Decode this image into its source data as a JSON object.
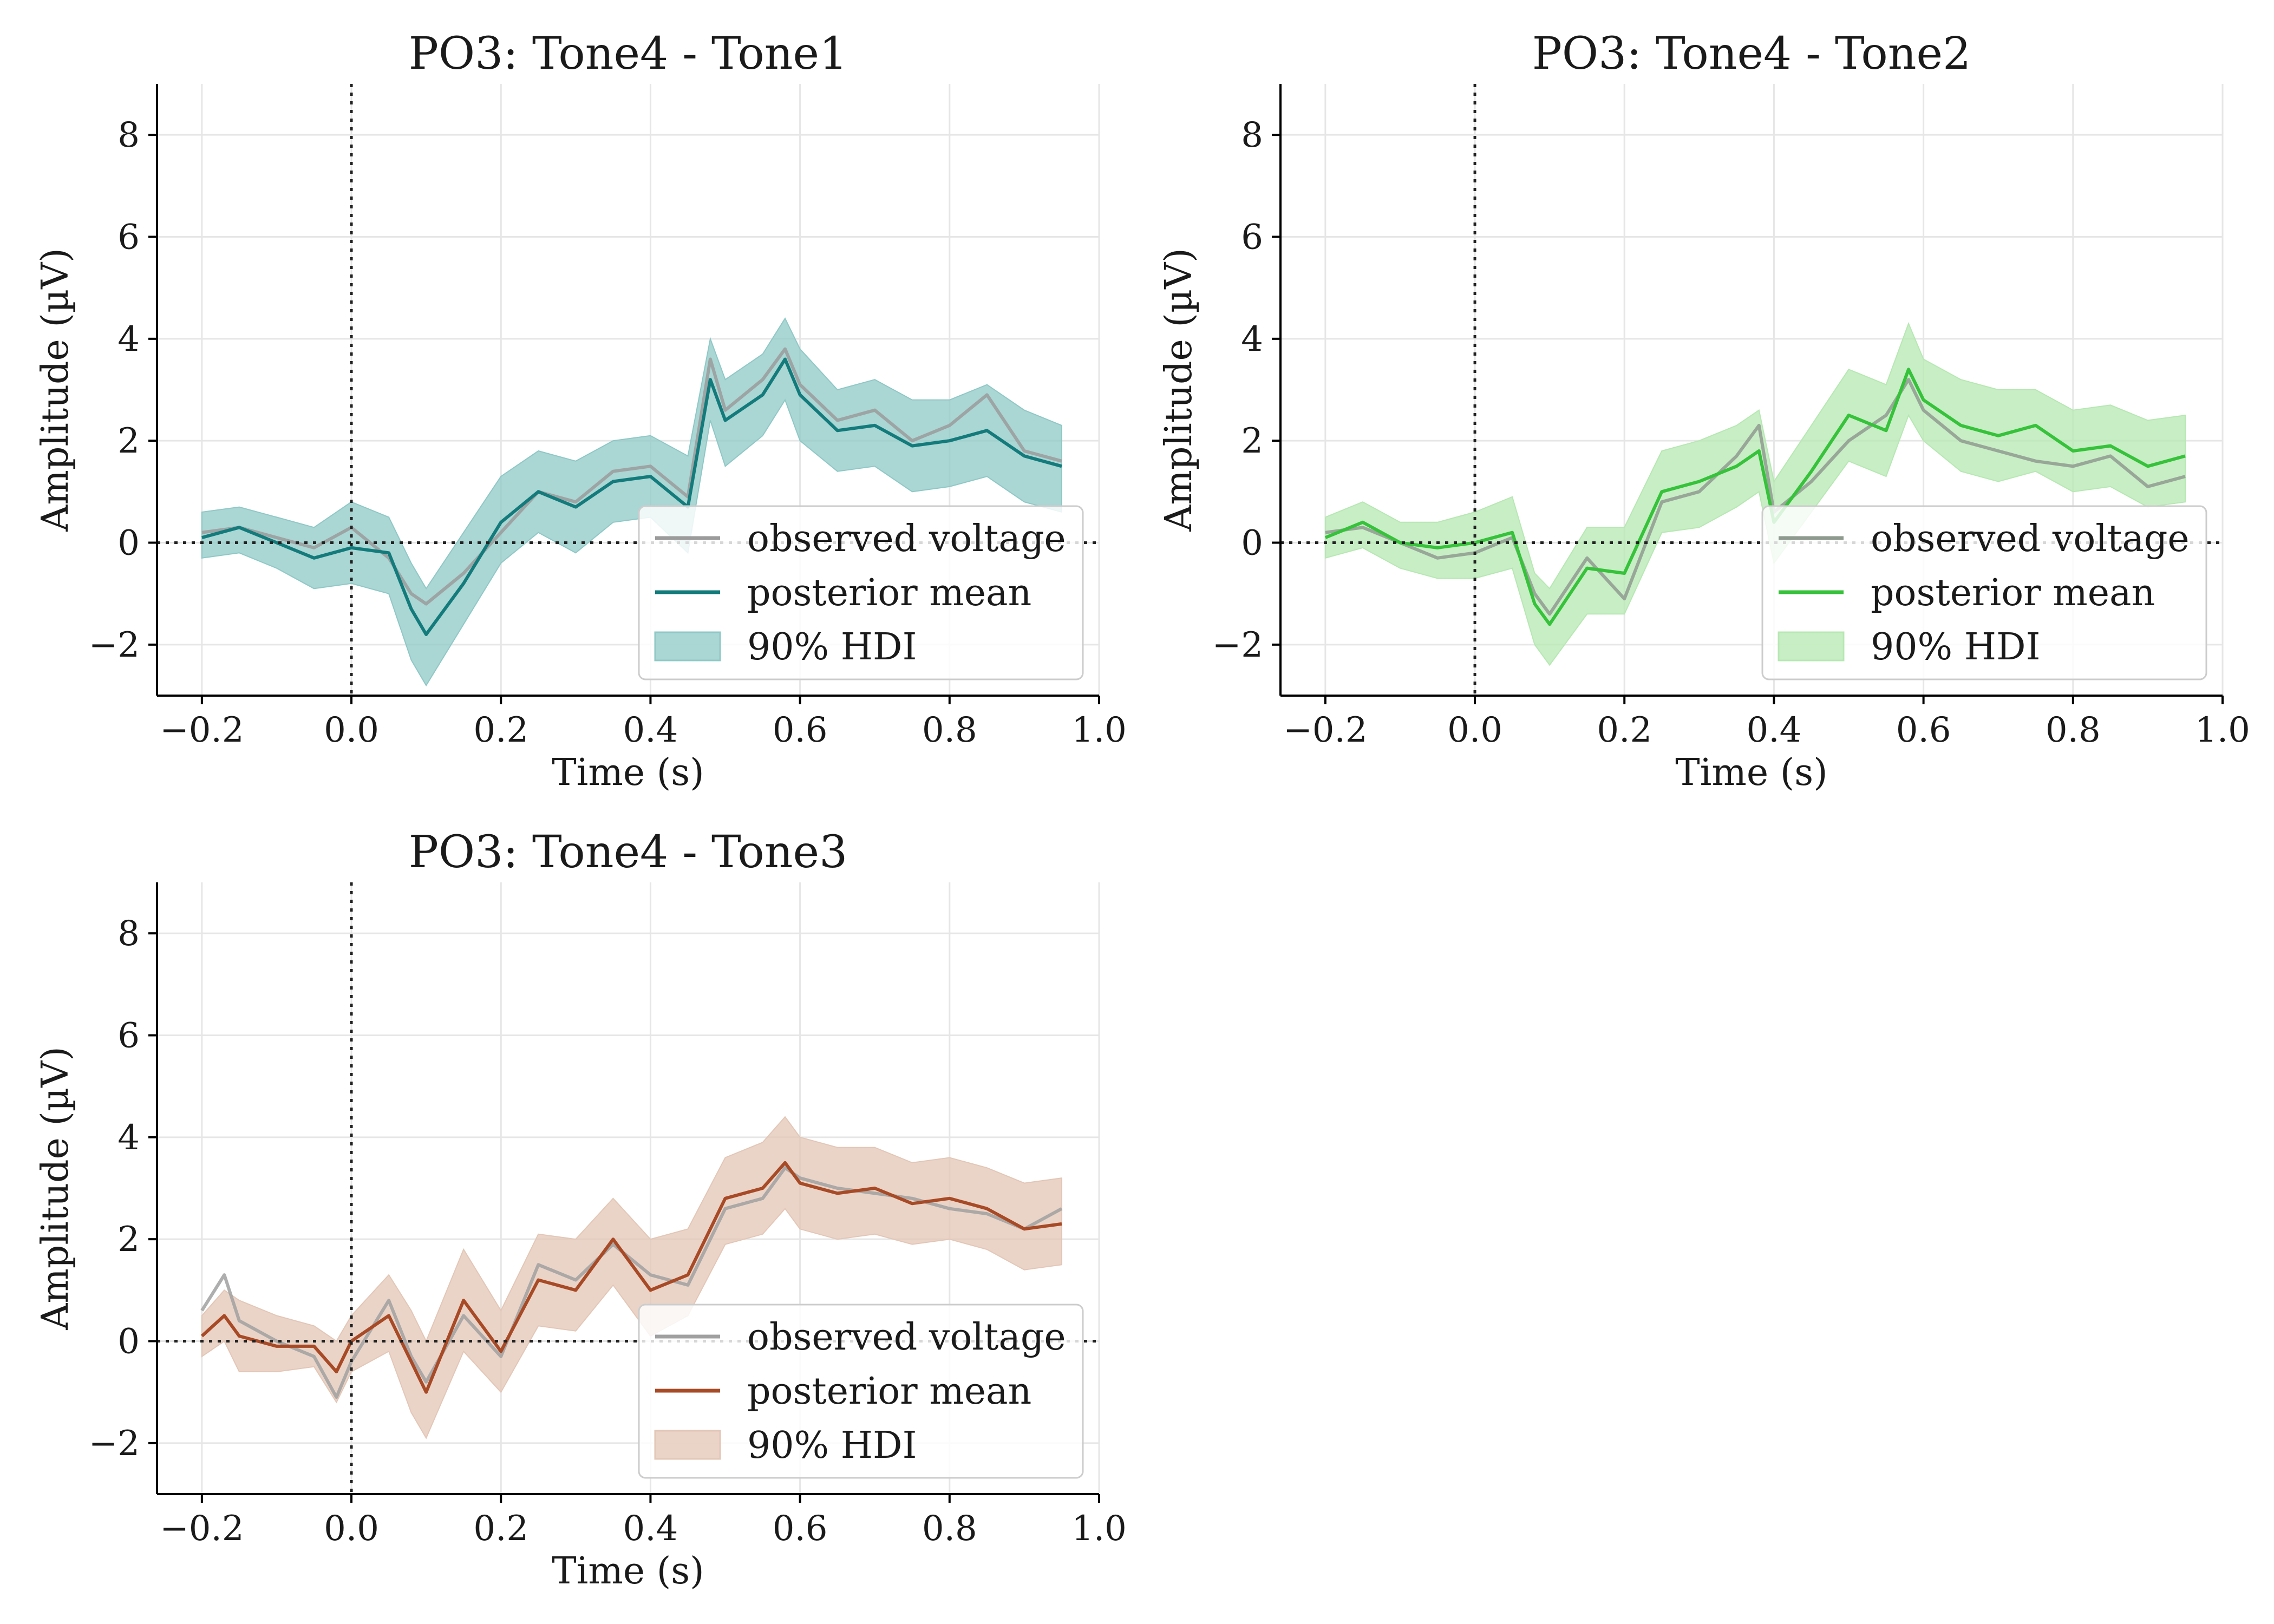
{
  "figure": {
    "x_tick_labels": [
      "−0.2",
      "0.0",
      "0.2",
      "0.4",
      "0.6",
      "0.8",
      "1.0"
    ],
    "y_tick_labels": [
      "−2",
      "0",
      "2",
      "4",
      "6",
      "8"
    ]
  },
  "chart_data": [
    {
      "type": "line",
      "title": "PO3: Tone4 - Tone1",
      "xlabel": "Time (s)",
      "ylabel": "Amplitude (µV)",
      "xlim": [
        -0.26,
        1.0
      ],
      "ylim": [
        -3.0,
        9.0
      ],
      "xticks": [
        -0.2,
        0.0,
        0.2,
        0.4,
        0.6,
        0.8,
        1.0
      ],
      "yticks": [
        -2,
        0,
        2,
        4,
        6,
        8
      ],
      "grid": true,
      "legend_position": "lower-right",
      "legend": [
        "observed voltage",
        "posterior mean",
        "90% HDI"
      ],
      "colors": {
        "posterior": "#137b7b",
        "hdi": "#8ec8c6",
        "observed": "#9b9b9b"
      },
      "x": [
        -0.2,
        -0.15,
        -0.1,
        -0.05,
        0.0,
        0.05,
        0.08,
        0.1,
        0.15,
        0.2,
        0.25,
        0.3,
        0.35,
        0.4,
        0.45,
        0.48,
        0.5,
        0.55,
        0.58,
        0.6,
        0.65,
        0.7,
        0.75,
        0.8,
        0.85,
        0.9,
        0.95
      ],
      "series": [
        {
          "name": "observed voltage",
          "values": [
            0.2,
            0.3,
            0.1,
            -0.1,
            0.3,
            -0.3,
            -1.0,
            -1.2,
            -0.6,
            0.2,
            1.0,
            0.8,
            1.4,
            1.5,
            0.9,
            3.6,
            2.6,
            3.2,
            3.8,
            3.1,
            2.4,
            2.6,
            2.0,
            2.3,
            2.9,
            1.8,
            1.6
          ]
        },
        {
          "name": "posterior mean",
          "values": [
            0.1,
            0.3,
            0.0,
            -0.3,
            -0.1,
            -0.2,
            -1.3,
            -1.8,
            -0.8,
            0.4,
            1.0,
            0.7,
            1.2,
            1.3,
            0.7,
            3.2,
            2.4,
            2.9,
            3.6,
            2.9,
            2.2,
            2.3,
            1.9,
            2.0,
            2.2,
            1.7,
            1.5
          ]
        },
        {
          "name": "90% HDI upper",
          "values": [
            0.6,
            0.7,
            0.5,
            0.3,
            0.8,
            0.5,
            -0.4,
            -0.9,
            0.2,
            1.3,
            1.8,
            1.6,
            2.0,
            2.1,
            1.7,
            4.0,
            3.2,
            3.7,
            4.4,
            3.8,
            3.0,
            3.2,
            2.8,
            2.8,
            3.1,
            2.6,
            2.3
          ]
        },
        {
          "name": "90% HDI lower",
          "values": [
            -0.3,
            -0.2,
            -0.5,
            -0.9,
            -0.8,
            -1.0,
            -2.3,
            -2.8,
            -1.6,
            -0.4,
            0.2,
            -0.2,
            0.4,
            0.5,
            -0.2,
            2.4,
            1.5,
            2.1,
            2.8,
            2.0,
            1.4,
            1.5,
            1.0,
            1.1,
            1.3,
            0.8,
            0.6
          ]
        }
      ]
    },
    {
      "type": "line",
      "title": "PO3: Tone4 - Tone2",
      "xlabel": "Time (s)",
      "ylabel": "Amplitude (µV)",
      "xlim": [
        -0.26,
        1.0
      ],
      "ylim": [
        -3.0,
        9.0
      ],
      "xticks": [
        -0.2,
        0.0,
        0.2,
        0.4,
        0.6,
        0.8,
        1.0
      ],
      "yticks": [
        -2,
        0,
        2,
        4,
        6,
        8
      ],
      "grid": true,
      "legend_position": "lower-right",
      "legend": [
        "observed voltage",
        "posterior mean",
        "90% HDI"
      ],
      "colors": {
        "posterior": "#36c23a",
        "hdi": "#b6e8b2",
        "observed": "#8f9a8f"
      },
      "x": [
        -0.2,
        -0.15,
        -0.1,
        -0.05,
        0.0,
        0.05,
        0.08,
        0.1,
        0.15,
        0.2,
        0.25,
        0.3,
        0.35,
        0.38,
        0.4,
        0.45,
        0.5,
        0.55,
        0.58,
        0.6,
        0.65,
        0.7,
        0.75,
        0.8,
        0.85,
        0.9,
        0.95
      ],
      "series": [
        {
          "name": "observed voltage",
          "values": [
            0.2,
            0.3,
            0.0,
            -0.3,
            -0.2,
            0.1,
            -1.0,
            -1.4,
            -0.3,
            -1.1,
            0.8,
            1.0,
            1.7,
            2.3,
            0.6,
            1.2,
            2.0,
            2.5,
            3.2,
            2.6,
            2.0,
            1.8,
            1.6,
            1.5,
            1.7,
            1.1,
            1.3
          ]
        },
        {
          "name": "posterior mean",
          "values": [
            0.1,
            0.4,
            0.0,
            -0.1,
            0.0,
            0.2,
            -1.2,
            -1.6,
            -0.5,
            -0.6,
            1.0,
            1.2,
            1.5,
            1.8,
            0.4,
            1.4,
            2.5,
            2.2,
            3.4,
            2.8,
            2.3,
            2.1,
            2.3,
            1.8,
            1.9,
            1.5,
            1.7
          ]
        },
        {
          "name": "90% HDI upper",
          "values": [
            0.5,
            0.8,
            0.4,
            0.4,
            0.6,
            0.9,
            -0.6,
            -0.9,
            0.3,
            0.3,
            1.8,
            2.0,
            2.3,
            2.6,
            1.2,
            2.3,
            3.4,
            3.1,
            4.3,
            3.6,
            3.2,
            3.0,
            3.0,
            2.6,
            2.7,
            2.4,
            2.5
          ]
        },
        {
          "name": "90% HDI lower",
          "values": [
            -0.3,
            -0.1,
            -0.5,
            -0.7,
            -0.7,
            -0.5,
            -2.0,
            -2.4,
            -1.4,
            -1.4,
            0.2,
            0.3,
            0.7,
            1.0,
            -0.4,
            0.6,
            1.6,
            1.3,
            2.5,
            2.0,
            1.4,
            1.2,
            1.4,
            1.0,
            1.1,
            0.7,
            0.8
          ]
        }
      ]
    },
    {
      "type": "line",
      "title": "PO3: Tone4 - Tone3",
      "xlabel": "Time (s)",
      "ylabel": "Amplitude (µV)",
      "xlim": [
        -0.26,
        1.0
      ],
      "ylim": [
        -3.0,
        9.0
      ],
      "xticks": [
        -0.2,
        0.0,
        0.2,
        0.4,
        0.6,
        0.8,
        1.0
      ],
      "yticks": [
        -2,
        0,
        2,
        4,
        6,
        8
      ],
      "grid": true,
      "legend_position": "lower-right",
      "legend": [
        "observed voltage",
        "posterior mean",
        "90% HDI"
      ],
      "colors": {
        "posterior": "#a84a26",
        "hdi": "#e3c6b6",
        "observed": "#a0a0a0"
      },
      "x": [
        -0.2,
        -0.17,
        -0.15,
        -0.1,
        -0.05,
        -0.02,
        0.0,
        0.05,
        0.08,
        0.1,
        0.15,
        0.2,
        0.25,
        0.3,
        0.35,
        0.4,
        0.45,
        0.5,
        0.55,
        0.58,
        0.6,
        0.65,
        0.7,
        0.75,
        0.8,
        0.85,
        0.9,
        0.95
      ],
      "series": [
        {
          "name": "observed voltage",
          "values": [
            0.6,
            1.3,
            0.4,
            0.0,
            -0.3,
            -1.1,
            -0.4,
            0.8,
            -0.3,
            -0.8,
            0.5,
            -0.3,
            1.5,
            1.2,
            1.9,
            1.3,
            1.1,
            2.6,
            2.8,
            3.4,
            3.2,
            3.0,
            2.9,
            2.8,
            2.6,
            2.5,
            2.2,
            2.6
          ]
        },
        {
          "name": "posterior mean",
          "values": [
            0.1,
            0.5,
            0.1,
            -0.1,
            -0.1,
            -0.6,
            0.0,
            0.5,
            -0.4,
            -1.0,
            0.8,
            -0.2,
            1.2,
            1.0,
            2.0,
            1.0,
            1.3,
            2.8,
            3.0,
            3.5,
            3.1,
            2.9,
            3.0,
            2.7,
            2.8,
            2.6,
            2.2,
            2.3
          ]
        },
        {
          "name": "90% HDI upper",
          "values": [
            0.5,
            1.0,
            0.8,
            0.5,
            0.3,
            0.0,
            0.5,
            1.3,
            0.6,
            0.0,
            1.8,
            0.6,
            2.1,
            2.0,
            2.8,
            2.0,
            2.2,
            3.6,
            3.9,
            4.4,
            4.0,
            3.8,
            3.8,
            3.5,
            3.6,
            3.4,
            3.1,
            3.2
          ]
        },
        {
          "name": "90% HDI lower",
          "values": [
            -0.3,
            0.0,
            -0.6,
            -0.6,
            -0.5,
            -1.2,
            -0.6,
            -0.2,
            -1.4,
            -1.9,
            -0.2,
            -1.0,
            0.3,
            0.2,
            1.1,
            0.1,
            0.5,
            1.9,
            2.1,
            2.6,
            2.2,
            2.0,
            2.1,
            1.9,
            2.0,
            1.8,
            1.4,
            1.5
          ]
        }
      ]
    }
  ]
}
